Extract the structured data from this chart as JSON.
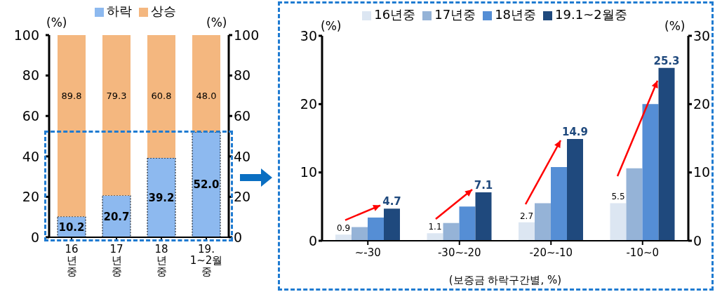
{
  "chart_data": [
    {
      "type": "bar",
      "stacked": true,
      "categories": [
        "16\n년\n중",
        "17\n년\n중",
        "18\n년\n중",
        "19.\n1~2월\n중"
      ],
      "series": [
        {
          "name": "하락",
          "color": "#8db9ef",
          "values": [
            10.2,
            20.7,
            39.2,
            52.0
          ],
          "value_labels": [
            "10.2",
            "20.7",
            "39.2",
            "52.0"
          ]
        },
        {
          "name": "상승",
          "color": "#f4b77f",
          "values": [
            89.8,
            79.3,
            60.8,
            48.0
          ],
          "value_labels": [
            "89.8",
            "79.3",
            "60.8",
            "48.0"
          ]
        }
      ],
      "ylim": [
        0,
        100
      ],
      "yticks": [
        0,
        20,
        40,
        60,
        80,
        100
      ],
      "y2lim": [
        0,
        100
      ],
      "y2ticks": [
        0,
        20,
        40,
        60,
        80,
        100
      ],
      "ylabel": "(%)",
      "y2label": "(%)",
      "legend": "top",
      "grid": false
    },
    {
      "type": "bar",
      "categories": [
        "~-30",
        "-30~-20",
        "-20~-10",
        "-10~0"
      ],
      "xlabel": "(보증금 하락구간별, %)",
      "series": [
        {
          "name": "16년중",
          "color": "#dce6f2",
          "values": [
            0.9,
            1.1,
            2.7,
            5.5
          ],
          "value_labels": [
            "0.9",
            "1.1",
            "2.7",
            "5.5"
          ]
        },
        {
          "name": "17년중",
          "color": "#95b3d7",
          "values": [
            2.0,
            2.6,
            5.5,
            10.6
          ]
        },
        {
          "name": "18년중",
          "color": "#558ed5",
          "values": [
            3.4,
            5.0,
            10.8,
            20.0
          ]
        },
        {
          "name": "19.1~2월중",
          "color": "#1f497d",
          "values": [
            4.7,
            7.1,
            14.9,
            25.3
          ],
          "value_labels": [
            "4.7",
            "7.1",
            "14.9",
            "25.3"
          ]
        }
      ],
      "ylim": [
        0,
        30
      ],
      "yticks": [
        0,
        10,
        20,
        30
      ],
      "y2lim": [
        0,
        30
      ],
      "y2ticks": [
        0,
        10,
        20,
        30
      ],
      "ylabel": "(%)",
      "y2label": "(%)",
      "legend": "top",
      "grid": false
    }
  ]
}
